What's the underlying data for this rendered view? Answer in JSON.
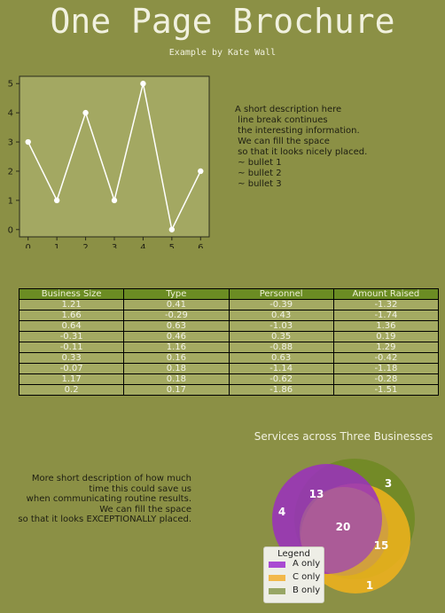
{
  "header": {
    "title": "One Page Brochure",
    "subtitle": "Example by Kate Wall"
  },
  "description_top": {
    "lines": [
      "A short description here",
      " line break continues",
      " the interesting information.",
      "",
      " We can fill the space",
      " so that it looks nicely placed.",
      "",
      " ~ bullet 1",
      " ~ bullet 2",
      " ~ bullet 3"
    ]
  },
  "description_bottom": {
    "lines": [
      "More short description of how much",
      "time this could save us",
      "when communicating routine results.",
      "",
      "We can fill the space",
      "so that it looks EXCEPTIONALLY placed."
    ]
  },
  "chart_data": [
    {
      "type": "line",
      "x": [
        0,
        1,
        2,
        3,
        4,
        5,
        6
      ],
      "y": [
        3,
        1,
        4,
        1,
        5,
        0,
        2
      ],
      "xlim": [
        -0.3,
        6.3
      ],
      "ylim": [
        -0.25,
        5.25
      ],
      "xticks": [
        0,
        1,
        2,
        3,
        4,
        5,
        6
      ],
      "yticks": [
        0,
        1,
        2,
        3,
        4,
        5
      ],
      "grid": false,
      "colors": {
        "line": "#ffffff",
        "plot_bg": "#a3a862",
        "axes": "#2a2a1a"
      }
    },
    {
      "type": "table",
      "columns": [
        "Business Size",
        "Type",
        "Personnel",
        "Amount Raised"
      ],
      "rows": [
        [
          "1.21",
          "0.41",
          "-0.39",
          "-1.32"
        ],
        [
          "1.66",
          "-0.29",
          "0.43",
          "-1.74"
        ],
        [
          "0.64",
          "0.63",
          "-1.03",
          "1.36"
        ],
        [
          "-0.31",
          "0.46",
          "0.35",
          "0.19"
        ],
        [
          "-0.11",
          "1.16",
          "-0.88",
          "1.29"
        ],
        [
          "0.33",
          "0.16",
          "0.63",
          "-0.42"
        ],
        [
          "-0.07",
          "0.18",
          "-1.14",
          "-1.18"
        ],
        [
          "1.17",
          "0.18",
          "-0.62",
          "-0.28"
        ],
        [
          "0.2",
          "0.17",
          "-1.86",
          "-1.51"
        ]
      ]
    },
    {
      "type": "venn",
      "title": "Services across Three Businesses",
      "regions": [
        {
          "label": "4"
        },
        {
          "label": "3"
        },
        {
          "label": "1"
        },
        {
          "label": "13"
        },
        {
          "label": "15"
        },
        {
          "label": "20"
        }
      ],
      "colors": {
        "A": "#9a2fc0",
        "B": "#6f8a22",
        "C": "#f1b31c"
      },
      "legend": {
        "title": "Legend",
        "placement": "bottom-left",
        "items": [
          {
            "label": "A only",
            "color": "#a94ad2"
          },
          {
            "label": "C only",
            "color": "#f2b84a"
          },
          {
            "label": "B only",
            "color": "#98a665"
          }
        ]
      }
    }
  ]
}
